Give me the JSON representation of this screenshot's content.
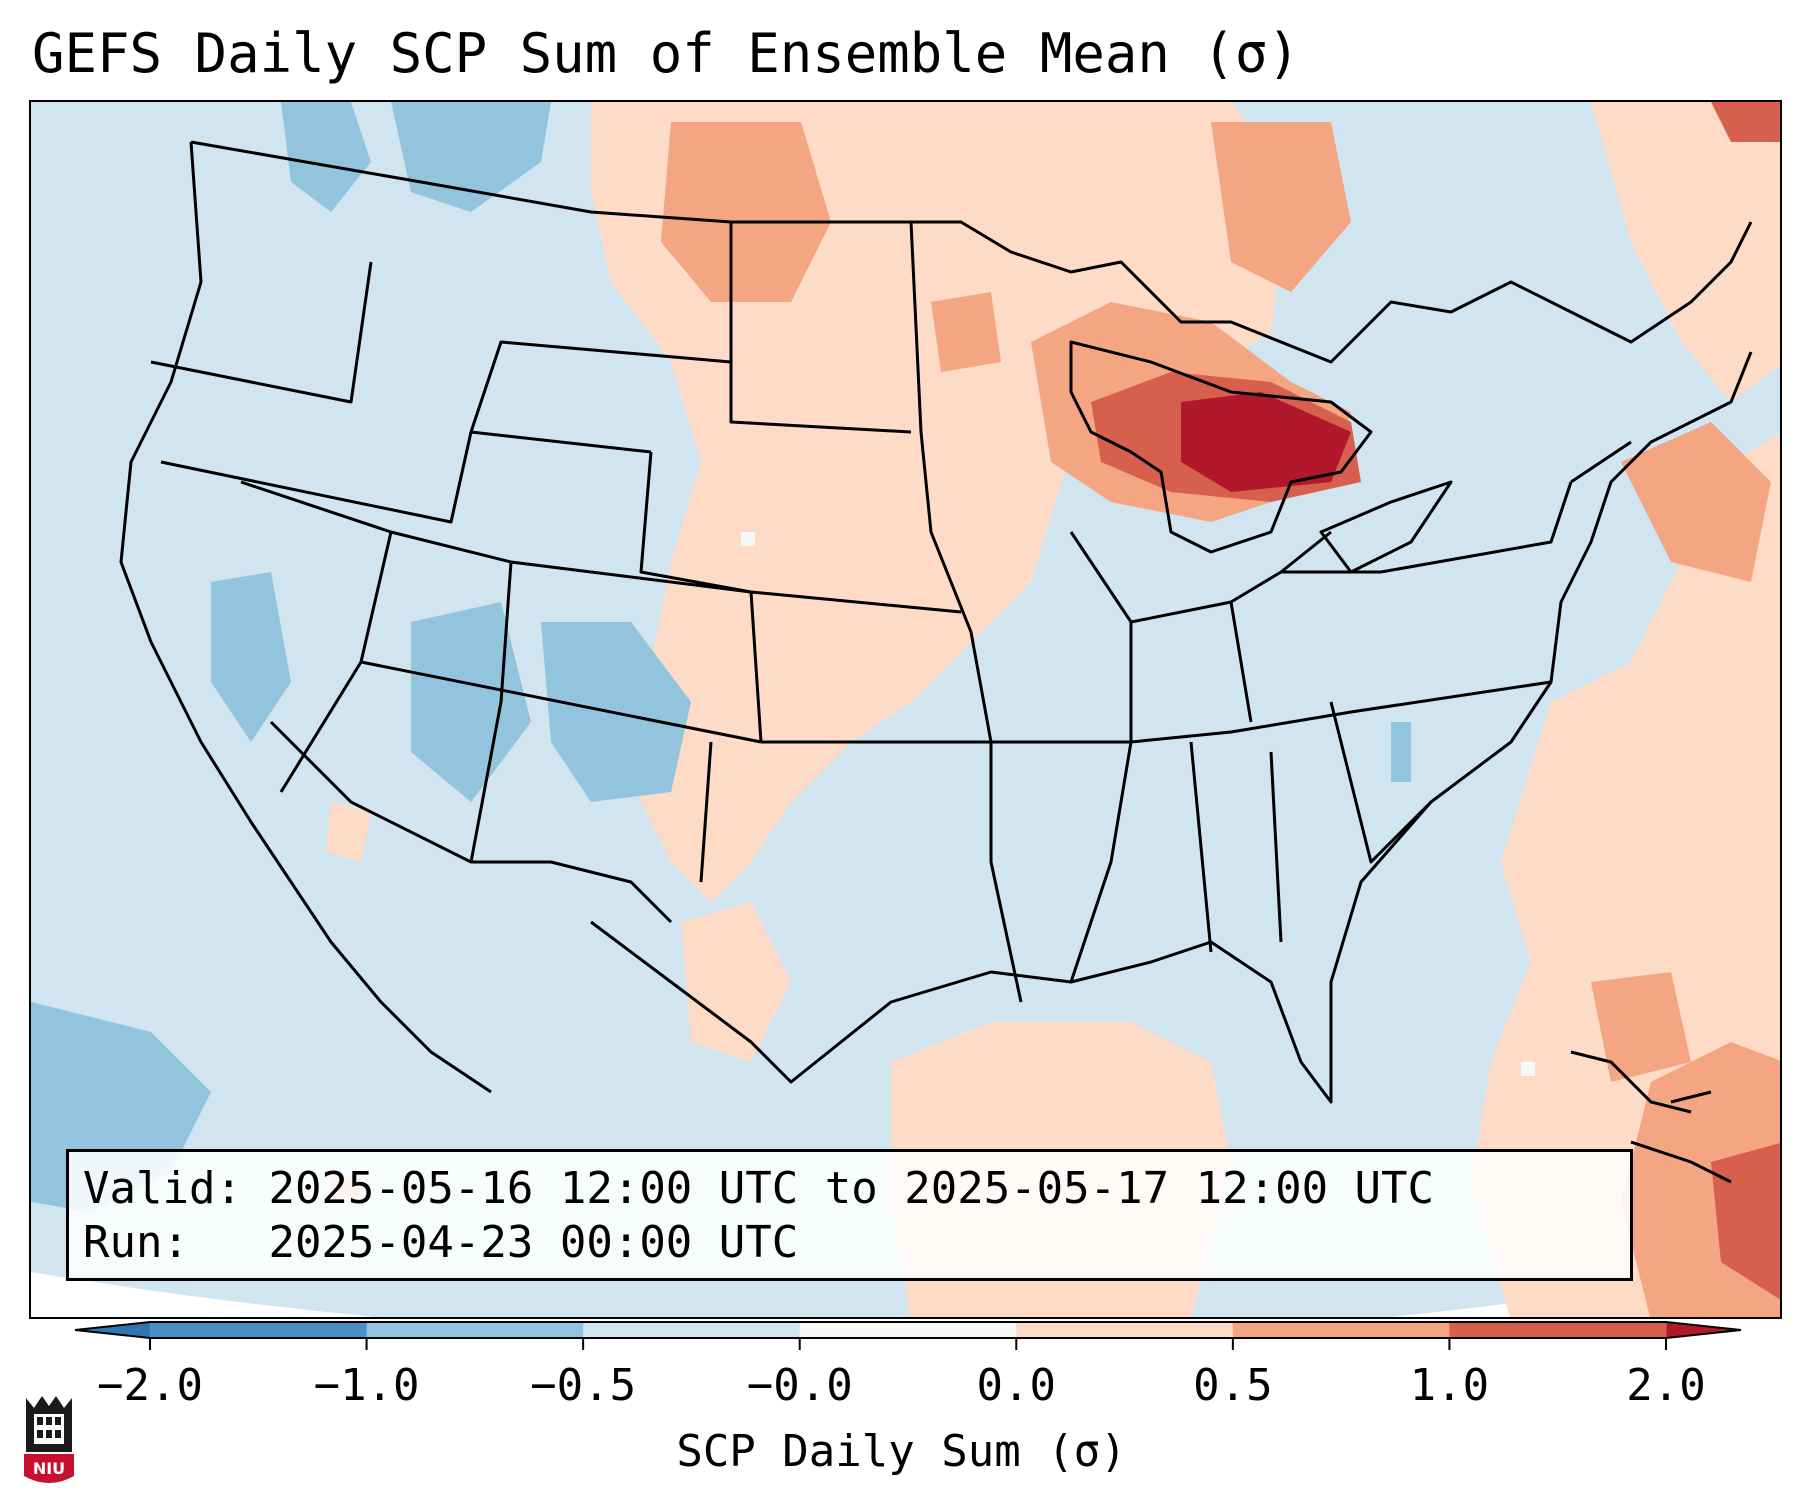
{
  "title": "GEFS Daily SCP Sum of Ensemble Mean (σ)",
  "info": {
    "valid_label": "Valid:",
    "valid_value": "2025-05-16 12:00 UTC to 2025-05-17 12:00 UTC",
    "run_label": "Run:",
    "run_value": "2025-04-23 00:00 UTC"
  },
  "colorbar": {
    "label": "SCP Daily Sum (σ)",
    "ticks": [
      "−2.0",
      "−1.0",
      "−0.5",
      "−0.0",
      "0.0",
      "0.5",
      "1.0",
      "2.0"
    ],
    "extend": "both",
    "bin_colors": [
      "#4a90c6",
      "#92c4de",
      "#d1e5f0",
      "#f7f7f7",
      "#fddbc7",
      "#f4a582",
      "#d6604d"
    ],
    "under_color": "#2f76b4",
    "over_color": "#b2182b"
  },
  "map": {
    "background_value_color": "#d1e5f0",
    "ocean_outside_color": "#ffffff",
    "line_color": "#000000"
  },
  "logo": {
    "text": "NIU",
    "color": "#c8102e"
  }
}
